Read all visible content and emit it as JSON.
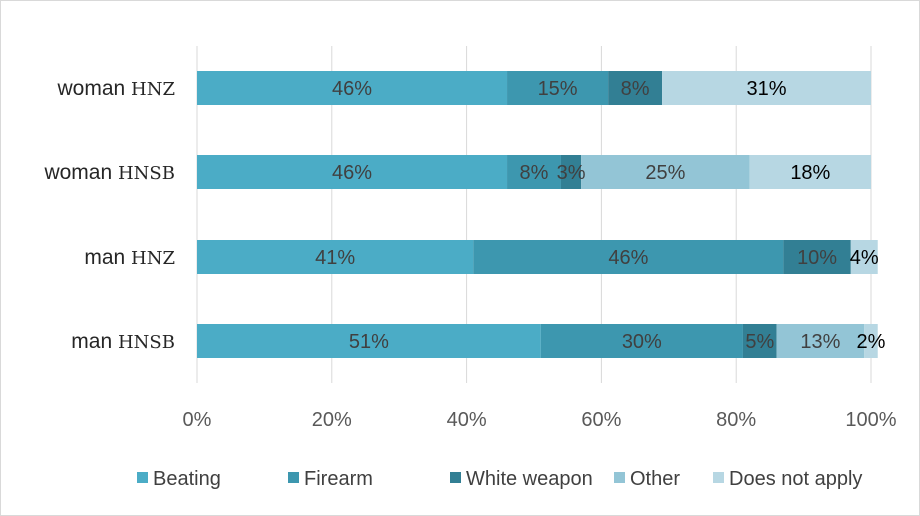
{
  "chart_data": {
    "type": "bar",
    "orientation": "horizontal",
    "stacked": true,
    "categories": [
      {
        "main": "woman",
        "suffix": "HNZ"
      },
      {
        "main": "woman",
        "suffix": "HNSB"
      },
      {
        "main": "man",
        "suffix": "HNZ"
      },
      {
        "main": "man",
        "suffix": "HNSB"
      }
    ],
    "series": [
      {
        "name": "Beating",
        "color": "#4bacc6",
        "label_color": "#404040",
        "values": [
          46,
          46,
          41,
          51
        ],
        "labels": [
          "46%",
          "46%",
          "41%",
          "51%"
        ]
      },
      {
        "name": "Firearm",
        "color": "#3d97af",
        "label_color": "#404040",
        "values": [
          15,
          8,
          46,
          30
        ],
        "labels": [
          "15%",
          "8%",
          "46%",
          "30%"
        ]
      },
      {
        "name": "White weapon",
        "color": "#327f94",
        "label_color": "#404040",
        "values": [
          8,
          3,
          10,
          5
        ],
        "labels": [
          "8%",
          "3%",
          "10%",
          "5%"
        ]
      },
      {
        "name": "Other",
        "color": "#93c5d6",
        "label_color": "#404040",
        "values": [
          0,
          25,
          0,
          13
        ],
        "labels": [
          "",
          "25%",
          "",
          "13%"
        ]
      },
      {
        "name": "Does not apply",
        "color": "#b7d7e3",
        "label_color": "#000000",
        "values": [
          31,
          18,
          4,
          2
        ],
        "labels": [
          "31%",
          "18%",
          "4%",
          "2%"
        ]
      }
    ],
    "x_ticks": [
      "0%",
      "20%",
      "40%",
      "60%",
      "80%",
      "100%"
    ],
    "xlim": [
      0,
      100
    ],
    "grid": true,
    "legend_position": "bottom"
  }
}
